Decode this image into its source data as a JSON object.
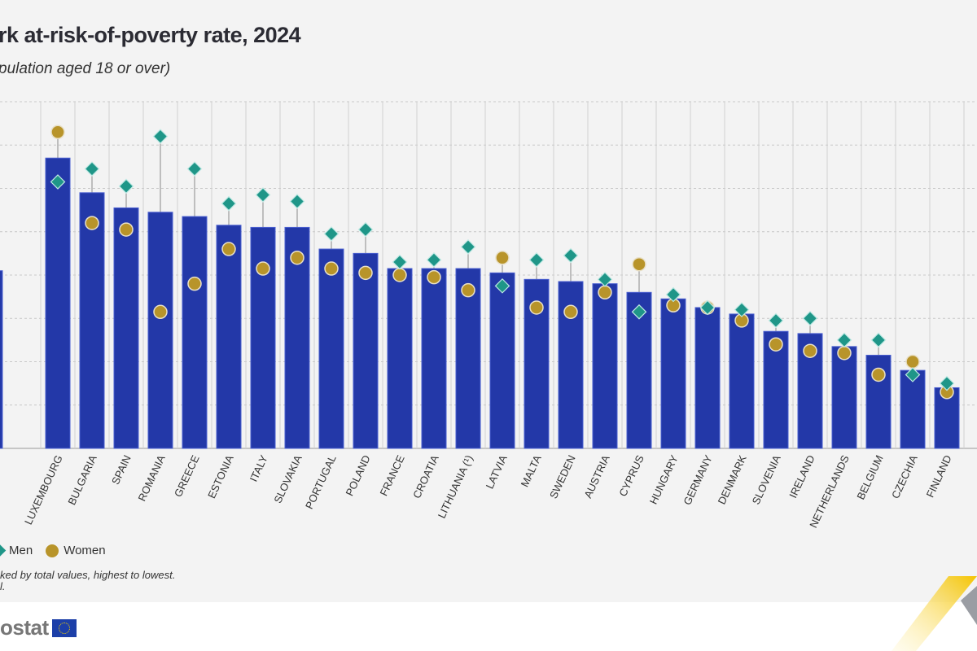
{
  "header": {
    "title": "rk at-risk-of-poverty rate, 2024",
    "subtitle": "pulation aged 18 or over)"
  },
  "legend": {
    "men_label": "Men",
    "women_label": "Women"
  },
  "notes": {
    "line1": "ked by total values, highest to lowest.",
    "line2": "l."
  },
  "logo": {
    "text": "ostat"
  },
  "colors": {
    "bar": "#2338a8",
    "men": "#1f9688",
    "women": "#b8942a",
    "background": "#f3f3f3"
  },
  "chart_data": {
    "type": "bar",
    "title": "rk at-risk-of-poverty rate, 2024",
    "ylim": [
      0,
      16
    ],
    "grid": true,
    "legend_position": "bottom-left",
    "categories": [
      "",
      "LUXEMBOURG",
      "BULGARIA",
      "SPAIN",
      "ROMANIA",
      "GREECE",
      "ESTONIA",
      "ITALY",
      "SLOVAKIA",
      "PORTUGAL",
      "POLAND",
      "FRANCE",
      "CROATIA",
      "LITHUANIA (¹)",
      "LATVIA",
      "MALTA",
      "SWEDEN",
      "AUSTRIA",
      "CYPRUS",
      "HUNGARY",
      "GERMANY",
      "DENMARK",
      "SLOVENIA",
      "IRELAND",
      "NETHERLANDS",
      "BELGIUM",
      "CZECHIA",
      "FINLAND"
    ],
    "series": [
      {
        "type": "bar",
        "values": [
          8.2,
          13.4,
          11.8,
          11.1,
          10.9,
          10.7,
          10.3,
          10.2,
          10.2,
          9.2,
          9.0,
          8.3,
          8.3,
          8.3,
          8.1,
          7.8,
          7.7,
          7.6,
          7.2,
          6.9,
          6.5,
          6.2,
          5.4,
          5.3,
          4.7,
          4.3,
          3.6,
          2.8
        ]
      },
      {
        "name": "Men",
        "type": "marker-diamond",
        "values": [
          null,
          12.3,
          12.9,
          12.1,
          14.4,
          12.9,
          11.3,
          11.7,
          11.4,
          9.9,
          10.1,
          8.6,
          8.7,
          9.3,
          7.5,
          8.7,
          8.9,
          7.8,
          6.3,
          7.1,
          6.5,
          6.4,
          5.9,
          6.0,
          5.0,
          5.0,
          3.4,
          3.0
        ]
      },
      {
        "name": "Women",
        "type": "marker-circle",
        "values": [
          null,
          14.6,
          10.4,
          10.1,
          6.3,
          7.6,
          9.2,
          8.3,
          8.8,
          8.3,
          8.1,
          8.0,
          7.9,
          7.3,
          8.8,
          6.5,
          6.3,
          7.2,
          8.5,
          6.6,
          6.5,
          5.9,
          4.8,
          4.5,
          4.4,
          3.4,
          4.0,
          2.6
        ]
      }
    ]
  }
}
